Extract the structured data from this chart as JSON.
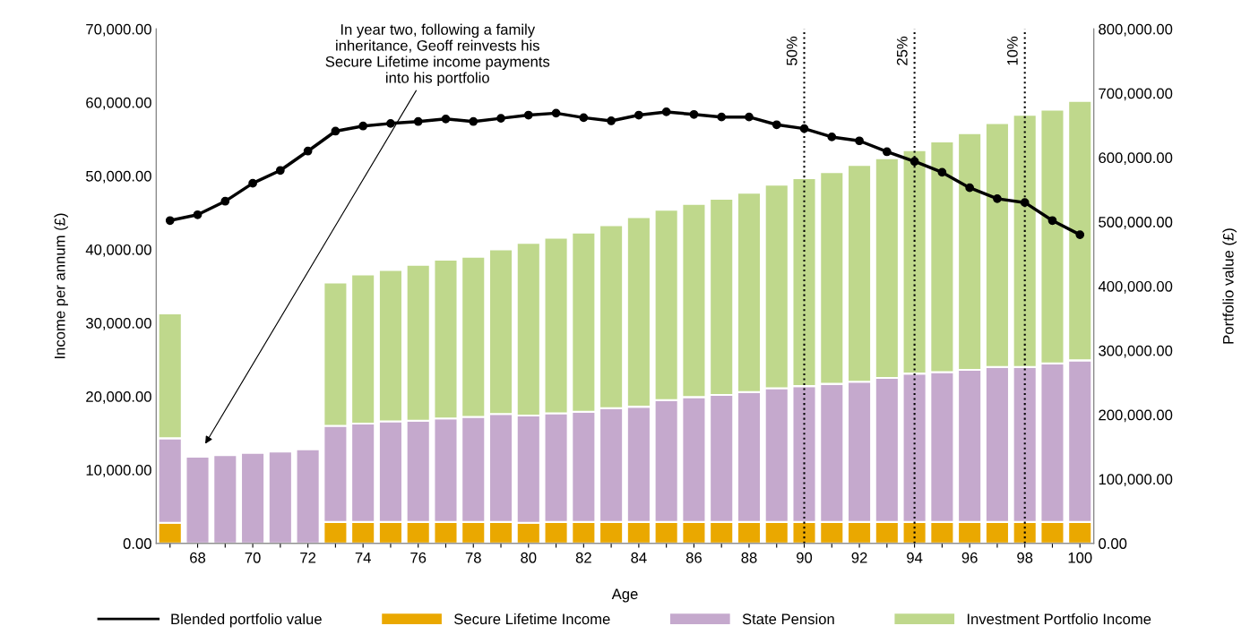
{
  "chart_data": {
    "type": "bar",
    "stacked": true,
    "xlabel": "Age",
    "ylabel": "Income per annum (£)",
    "y2label": "Portfolio value (£)",
    "x": [
      67,
      68,
      69,
      70,
      71,
      72,
      73,
      74,
      75,
      76,
      77,
      78,
      79,
      80,
      81,
      82,
      83,
      84,
      85,
      86,
      87,
      88,
      89,
      90,
      91,
      92,
      93,
      94,
      95,
      96,
      97,
      98,
      99,
      100
    ],
    "series": [
      {
        "name": "Secure Lifetime Income",
        "color": "#eaa800",
        "values": [
          2800,
          null,
          null,
          null,
          null,
          null,
          2900,
          2900,
          2900,
          2900,
          2900,
          2900,
          2900,
          2800,
          2900,
          2900,
          2900,
          2900,
          2900,
          2900,
          2900,
          2900,
          2900,
          2900,
          2900,
          2900,
          2900,
          2900,
          2900,
          2900,
          2900,
          2900,
          2900,
          2900
        ]
      },
      {
        "name": "State Pension",
        "color": "#c5a9cd",
        "values": [
          11500,
          11800,
          12000,
          12300,
          12500,
          12800,
          13100,
          13400,
          13700,
          13800,
          14100,
          14300,
          14700,
          14600,
          14800,
          15000,
          15500,
          15700,
          16600,
          17000,
          17300,
          17700,
          18200,
          18500,
          18800,
          19100,
          19600,
          20200,
          20400,
          20700,
          21100,
          21100,
          21600,
          22000
        ]
      },
      {
        "name": "Investment Portfolio Income",
        "color": "#bfd88c",
        "values": [
          17000,
          null,
          null,
          null,
          null,
          null,
          19500,
          20300,
          20600,
          21200,
          21600,
          21800,
          22400,
          23500,
          23900,
          24400,
          24900,
          25800,
          25900,
          26300,
          26700,
          27100,
          27700,
          28300,
          28800,
          29500,
          29900,
          30400,
          31400,
          32200,
          33200,
          34300,
          34500,
          35300
        ]
      },
      {
        "name": "Blended portfolio value",
        "type": "line",
        "axis": "y2",
        "color": "#000000",
        "marker": "circle",
        "values": [
          502000,
          511000,
          532000,
          560000,
          580000,
          610000,
          641000,
          649000,
          653000,
          656000,
          660000,
          656000,
          661000,
          666000,
          669000,
          662000,
          657000,
          666000,
          671000,
          667000,
          663000,
          663000,
          651000,
          645000,
          632000,
          626000,
          609000,
          594000,
          577000,
          553000,
          536000,
          530000,
          502000,
          480000
        ]
      }
    ],
    "xlim": [
      66.5,
      100.5
    ],
    "xticks": [
      {
        "value": 67,
        "label": null
      },
      68,
      {
        "value": 69,
        "label": null
      },
      70,
      {
        "value": 71,
        "label": null
      },
      72,
      {
        "value": 73,
        "label": null
      },
      74,
      {
        "value": 75,
        "label": null
      },
      76,
      {
        "value": 77,
        "label": null
      },
      78,
      {
        "value": 79,
        "label": null
      },
      80,
      {
        "value": 81,
        "label": null
      },
      82,
      {
        "value": 83,
        "label": null
      },
      84,
      {
        "value": 85,
        "label": null
      },
      86,
      {
        "value": 87,
        "label": null
      },
      88,
      {
        "value": 89,
        "label": null
      },
      90,
      {
        "value": 91,
        "label": null
      },
      92,
      {
        "value": 93,
        "label": null
      },
      94,
      {
        "value": 95,
        "label": null
      },
      96,
      {
        "value": 97,
        "label": null
      },
      98,
      {
        "value": 99,
        "label": null
      },
      100
    ],
    "ylim": [
      0,
      70000
    ],
    "yticks": [
      {
        "value": 0,
        "label": "0.00"
      },
      {
        "value": 10000,
        "label": "10,000.00"
      },
      {
        "value": 20000,
        "label": "20,000.00"
      },
      {
        "value": 30000,
        "label": "30,000.00"
      },
      {
        "value": 40000,
        "label": "40,000.00"
      },
      {
        "value": 50000,
        "label": "50,000.00"
      },
      {
        "value": 60000,
        "label": "60,000.00"
      },
      {
        "value": 70000,
        "label": "70,000.00"
      }
    ],
    "y2lim": [
      0,
      800000
    ],
    "y2ticks": [
      {
        "value": 0,
        "label": "0.00"
      },
      {
        "value": 100000,
        "label": "100,000.00"
      },
      {
        "value": 200000,
        "label": "200,000.00"
      },
      {
        "value": 300000,
        "label": "300,000.00"
      },
      {
        "value": 400000,
        "label": "400,000.00"
      },
      {
        "value": 500000,
        "label": "500,000.00"
      },
      {
        "value": 600000,
        "label": "600,000.00"
      },
      {
        "value": 700000,
        "label": "700,000.00"
      },
      {
        "value": 800000,
        "label": "800,000.00"
      }
    ],
    "ref_lines": [
      {
        "axis": "x",
        "value": 90,
        "line_style": "dotted",
        "color": "#000000"
      },
      {
        "axis": "x",
        "value": 94,
        "line_style": "dotted",
        "color": "#000000"
      },
      {
        "axis": "x",
        "value": 98,
        "line_style": "dotted",
        "color": "#000000"
      }
    ],
    "annotations": [
      "In year two, following a family\ninheritance, Geoff reinvests his\nSecure Lifetime income payments\ninto his portfolio",
      {
        "text": "50%",
        "x": 90,
        "y": 67000
      },
      {
        "text": "25%",
        "x": 94,
        "y": 67000
      },
      {
        "text": "10%",
        "x": 98,
        "y": 67000
      }
    ],
    "legend": "bottom",
    "grid": false
  }
}
